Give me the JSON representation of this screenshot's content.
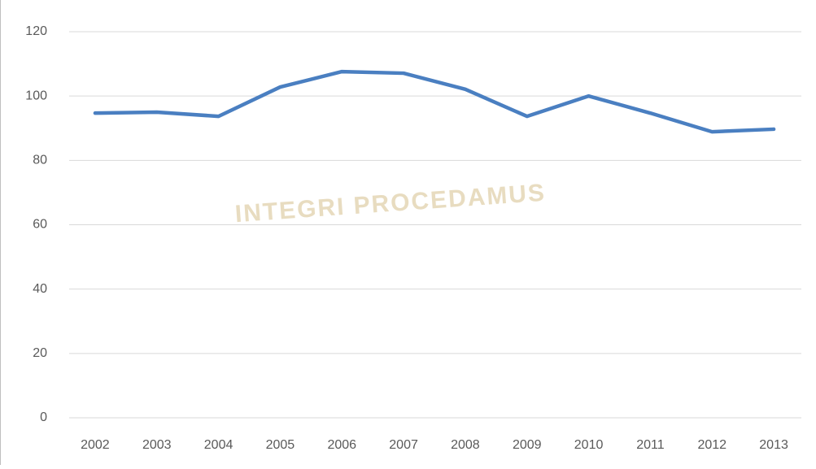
{
  "chart_data": {
    "type": "line",
    "watermark": "INTEGRI PROCEDAMUS",
    "categories": [
      "2002",
      "2003",
      "2004",
      "2005",
      "2006",
      "2007",
      "2008",
      "2009",
      "2010",
      "2011",
      "2012",
      "2013"
    ],
    "series": [
      {
        "color": "#4a7fc1",
        "values": [
          94.7,
          95,
          93.7,
          102.8,
          107.6,
          107.1,
          102.1,
          93.7,
          100,
          94.7,
          88.9,
          89.7
        ]
      }
    ],
    "ylim": [
      0,
      120
    ],
    "yticks": [
      0,
      20,
      40,
      60,
      80,
      100,
      120
    ],
    "grid": true
  }
}
